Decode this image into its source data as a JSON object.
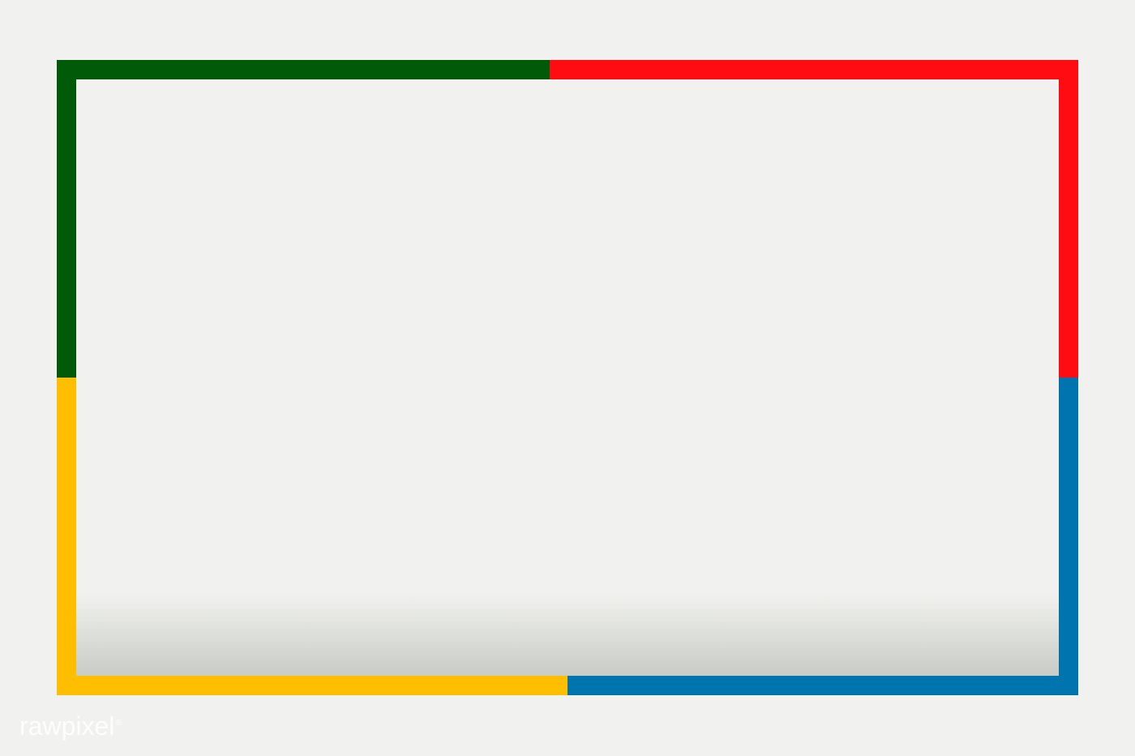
{
  "colors": {
    "background": "#f1f2ef",
    "inner_top": "#f1f2ef",
    "inner_bottom_shade": "#c9ccc6",
    "green": "#005a07",
    "red": "#ff0b12",
    "yellow": "#ffbf00",
    "blue": "#0074ae"
  },
  "watermark": {
    "text": "rawpixel",
    "mark": "®"
  }
}
